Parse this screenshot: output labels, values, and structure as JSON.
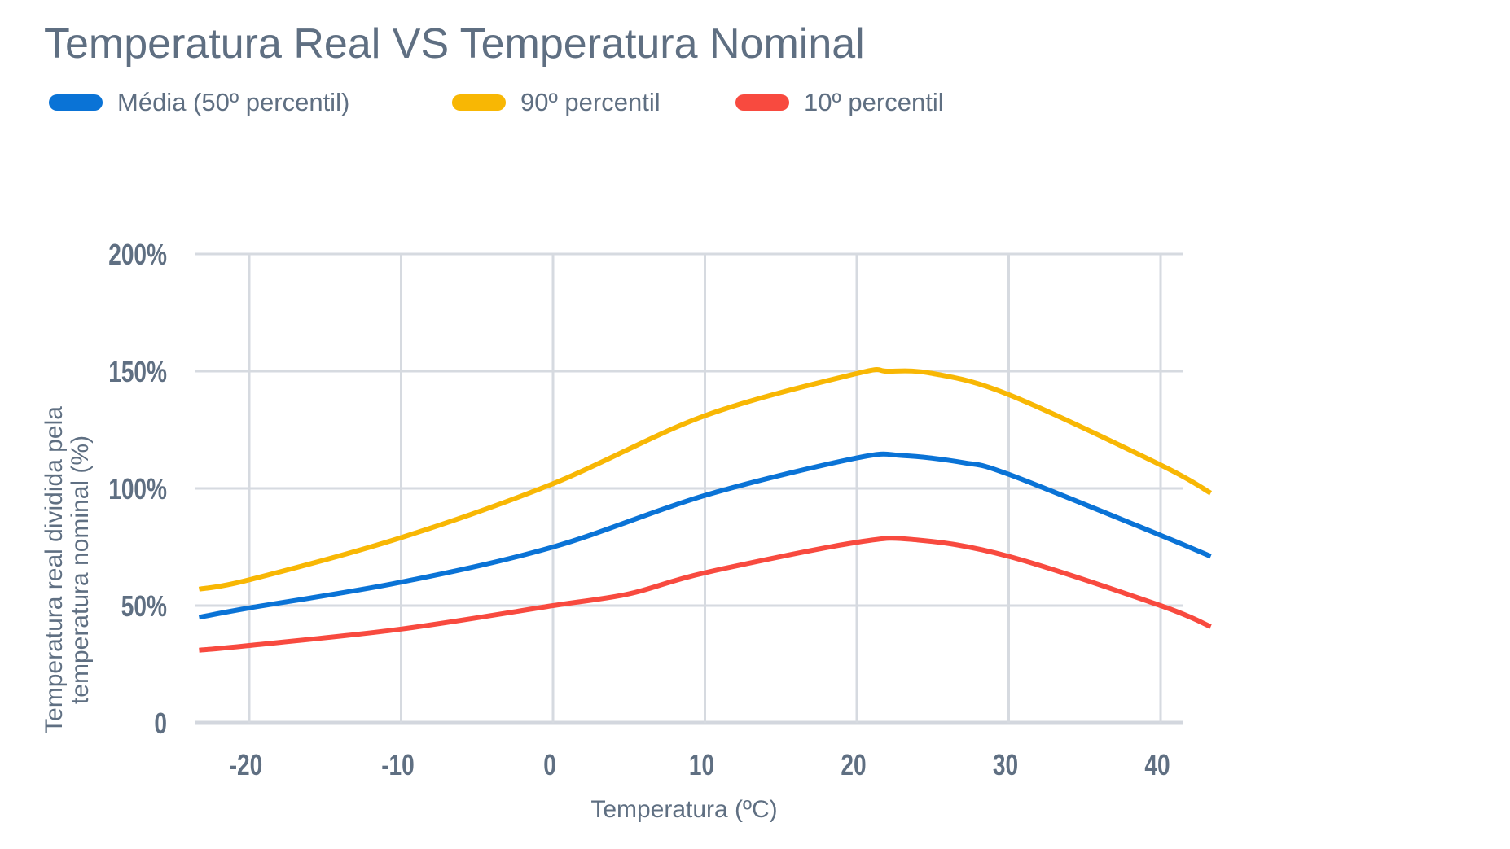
{
  "chart_data": {
    "type": "line",
    "title": "Temperatura Real VS Temperatura Nominal",
    "xlabel": "Temperatura (ºC)",
    "ylabel": [
      "Temperatura real dividida pela",
      "temperatura nominal (%)"
    ],
    "xlim": [
      -23.3,
      43.3
    ],
    "ylim": [
      0,
      200
    ],
    "xticks": [
      -20,
      -10,
      0,
      10,
      20,
      30,
      40
    ],
    "xtick_labels": [
      "-20",
      "-10",
      "0",
      "10",
      "20",
      "30",
      "40"
    ],
    "yticks": [
      0,
      50,
      100,
      150,
      200
    ],
    "ytick_labels": [
      "0",
      "50%",
      "100%",
      "150%",
      "200%"
    ],
    "grid": true,
    "legend": "top-left",
    "series": [
      {
        "name": "Média (50º percentil)",
        "color": "#0a73d6",
        "x": [
          -23.3,
          -20,
          -10,
          0,
          10,
          20,
          23,
          27,
          30,
          40,
          43.3
        ],
        "y": [
          45,
          49,
          60,
          75,
          97,
          113,
          114,
          111,
          106,
          80,
          71
        ]
      },
      {
        "name": "90º percentil",
        "color": "#f8b704",
        "x": [
          -23.3,
          -20,
          -10,
          0,
          10,
          20,
          22,
          25,
          30,
          40,
          43.3
        ],
        "y": [
          57,
          61,
          79,
          102,
          131,
          149,
          150,
          149,
          140,
          110,
          98
        ]
      },
      {
        "name": "10º percentil",
        "color": "#f84a3f",
        "x": [
          -23.3,
          -20,
          -10,
          0,
          5,
          10,
          20,
          24,
          30,
          40,
          43.3
        ],
        "y": [
          31,
          33,
          40,
          50,
          55,
          64,
          77,
          78,
          71,
          50,
          41
        ]
      }
    ]
  }
}
